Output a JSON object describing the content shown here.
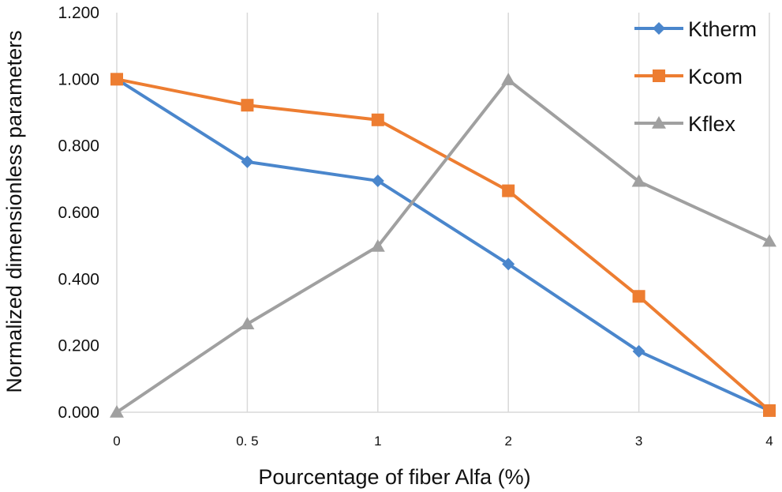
{
  "chart_data": {
    "type": "line",
    "title": "",
    "xlabel": "Pourcentage of fiber Alfa (%)",
    "ylabel": "Normalized dimensionless parameters",
    "categories": [
      "0",
      "0. 5",
      "1",
      "2",
      "3",
      "4"
    ],
    "ylim": [
      0,
      1.2
    ],
    "yticks": [
      "0.000",
      "0.200",
      "0.400",
      "0.600",
      "0.800",
      "1.000",
      "1.200"
    ],
    "ytick_values": [
      0,
      0.2,
      0.4,
      0.6,
      0.8,
      1.0,
      1.2
    ],
    "grid": "vertical",
    "legend_position": "top-right",
    "series": [
      {
        "name": "Ktherm",
        "color": "#4a86cc",
        "marker": "diamond",
        "values": [
          1.0,
          0.752,
          0.695,
          0.445,
          0.183,
          0.005
        ]
      },
      {
        "name": "Kcom",
        "color": "#ed7d31",
        "marker": "square",
        "values": [
          1.0,
          0.922,
          0.878,
          0.665,
          0.348,
          0.005
        ]
      },
      {
        "name": "Kflex",
        "color": "#a0a0a0",
        "marker": "triangle",
        "values": [
          0.0,
          0.265,
          0.498,
          0.998,
          0.693,
          0.513
        ]
      }
    ]
  }
}
